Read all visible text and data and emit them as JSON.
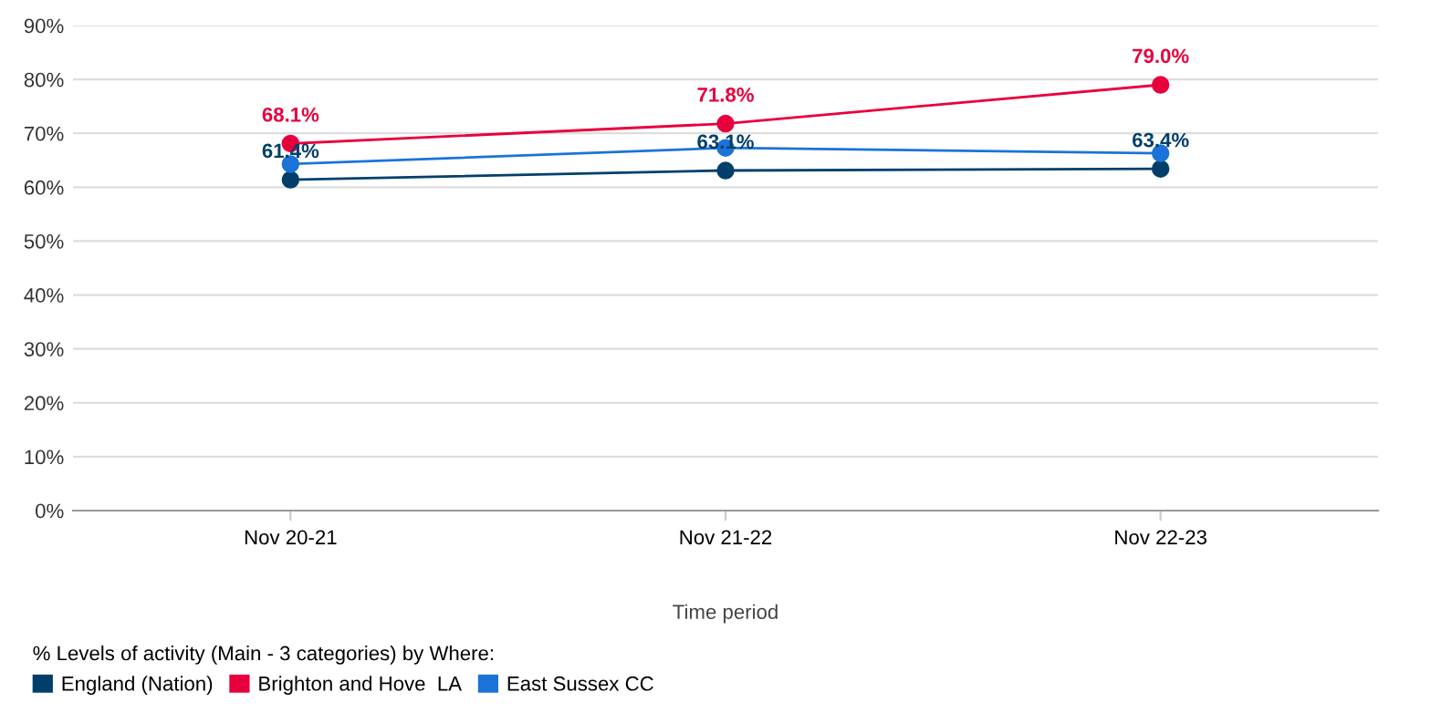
{
  "chart_data": {
    "type": "line",
    "xlabel": "Time period",
    "legend_title": "% Levels of activity (Main - 3 categories) by Where:",
    "categories": [
      "Nov 20-21",
      "Nov 21-22",
      "Nov 22-23"
    ],
    "series": [
      {
        "name": "England (Nation)",
        "color": "#003f6b",
        "values": [
          61.4,
          63.1,
          63.4
        ],
        "value_labels": [
          "61.4%",
          "63.1%",
          "63.4%"
        ]
      },
      {
        "name": "Brighton and Hove  LA",
        "color": "#e8003d",
        "values": [
          68.1,
          71.8,
          79.0
        ],
        "value_labels": [
          "68.1%",
          "71.8%",
          "79.0%"
        ]
      },
      {
        "name": "East Sussex CC",
        "color": "#1a73d9",
        "values": [
          64.3,
          67.3,
          66.3
        ]
      }
    ],
    "ylim": [
      0,
      90
    ],
    "yticks": [
      {
        "value": 0,
        "label": "0%"
      },
      {
        "value": 10,
        "label": "10%"
      },
      {
        "value": 20,
        "label": "20%"
      },
      {
        "value": 30,
        "label": "30%"
      },
      {
        "value": 40,
        "label": "40%"
      },
      {
        "value": 50,
        "label": "50%"
      },
      {
        "value": 60,
        "label": "60%"
      },
      {
        "value": 70,
        "label": "70%"
      },
      {
        "value": 80,
        "label": "80%"
      },
      {
        "value": 90,
        "label": "90%"
      }
    ],
    "grid": "y",
    "legend": "bottom left",
    "marker": "circle",
    "line_style": "solid"
  }
}
